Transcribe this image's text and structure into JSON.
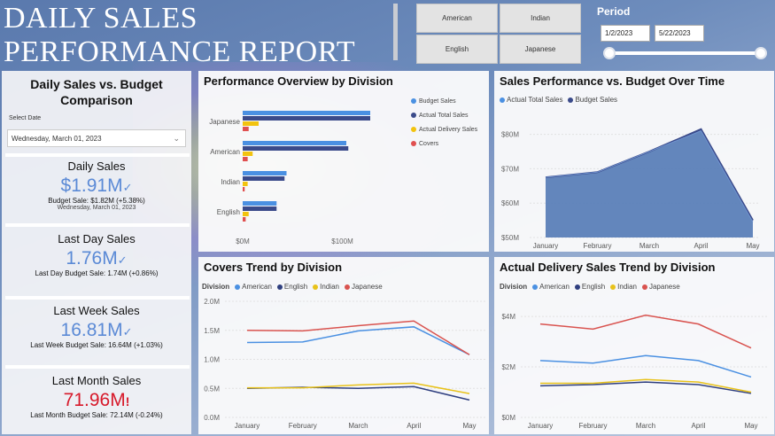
{
  "header": {
    "title_line1": "DAILY SALES",
    "title_line2": "PERFORMANCE REPORT",
    "division_buttons": [
      "American",
      "Indian",
      "English",
      "Japanese"
    ],
    "period_label": "Period",
    "start_date": "1/2/2023",
    "end_date": "5/22/2023"
  },
  "kpi": {
    "title": "Daily Sales vs. Budget Comparison",
    "select_label": "Select Date",
    "selected_date": "Wednesday, March 01, 2023",
    "daily": {
      "title": "Daily Sales",
      "value": "$1.91M",
      "sub": "Budget Sale: $1.82M (+5.38%)",
      "date": "Wednesday, March 01, 2023"
    },
    "last_day": {
      "title": "Last Day Sales",
      "value": "1.76M",
      "sub": "Last Day Budget Sale: 1.74M (+0.86%)"
    },
    "last_week": {
      "title": "Last Week Sales",
      "value": "16.81M",
      "sub": "Last Week Budget Sale: 16.64M (+1.03%)"
    },
    "last_month": {
      "title": "Last Month Sales",
      "value": "71.96M",
      "sub": "Last Month Budget Sale: 72.14M (-0.24%)"
    }
  },
  "colors": {
    "budget": "#4a90e2",
    "actual": "#3a4a8a",
    "delivery": "#f2c30f",
    "covers": "#e05050",
    "american": "#4a90e2",
    "english": "#2f3f7f",
    "indian": "#e8c21a",
    "japanese": "#d9534f",
    "area": "#5b7fb8"
  },
  "charts": {
    "overview": {
      "title": "Performance Overview by Division",
      "legend": [
        "Budget Sales",
        "Actual Total Sales",
        "Actual Delivery Sales",
        "Covers"
      ]
    },
    "budget_time": {
      "title": "Sales Performance vs. Budget Over Time",
      "legend": [
        "Actual Total Sales",
        "Budget Sales"
      ]
    },
    "covers": {
      "title": "Covers Trend by Division",
      "legend_label": "Division",
      "legend": [
        "American",
        "English",
        "Indian",
        "Japanese"
      ]
    },
    "delivery": {
      "title": "Actual Delivery Sales Trend by Division",
      "legend_label": "Division",
      "legend": [
        "American",
        "English",
        "Indian",
        "Japanese"
      ]
    }
  },
  "chart_data": [
    {
      "type": "bar",
      "title": "Performance Overview by Division",
      "orientation": "horizontal",
      "categories": [
        "Japanese",
        "American",
        "Indian",
        "English"
      ],
      "xticks": [
        "$0M",
        "$100M"
      ],
      "xlim": [
        0,
        160
      ],
      "series": [
        {
          "name": "Budget Sales",
          "values": [
            128,
            104,
            44,
            34
          ]
        },
        {
          "name": "Actual Total Sales",
          "values": [
            128,
            106,
            42,
            34
          ]
        },
        {
          "name": "Actual Delivery Sales",
          "values": [
            16,
            10,
            5,
            6
          ]
        },
        {
          "name": "Covers",
          "values": [
            6,
            5,
            2,
            3
          ]
        }
      ]
    },
    {
      "type": "area",
      "title": "Sales Performance vs. Budget Over Time",
      "x": [
        "January",
        "February",
        "March",
        "April",
        "May"
      ],
      "yticks": [
        "$50M",
        "$60M",
        "$70M",
        "$80M"
      ],
      "ylim": [
        50,
        83
      ],
      "series": [
        {
          "name": "Actual Total Sales",
          "values": [
            67.5,
            69,
            75,
            81,
            54.5
          ]
        },
        {
          "name": "Budget Sales",
          "values": [
            67.5,
            69,
            75,
            81.5,
            55
          ]
        }
      ]
    },
    {
      "type": "line",
      "title": "Covers Trend by Division",
      "x": [
        "January",
        "February",
        "March",
        "April",
        "May"
      ],
      "yticks": [
        "0.0M",
        "0.5M",
        "1.0M",
        "1.5M",
        "2.0M"
      ],
      "ylim": [
        0,
        2.0
      ],
      "series": [
        {
          "name": "American",
          "values": [
            1.29,
            1.3,
            1.49,
            1.56,
            1.08
          ]
        },
        {
          "name": "English",
          "values": [
            0.5,
            0.52,
            0.5,
            0.53,
            0.3
          ]
        },
        {
          "name": "Indian",
          "values": [
            0.51,
            0.51,
            0.56,
            0.59,
            0.41
          ]
        },
        {
          "name": "Japanese",
          "values": [
            1.5,
            1.49,
            1.58,
            1.66,
            1.08
          ]
        }
      ]
    },
    {
      "type": "line",
      "title": "Actual Delivery Sales Trend by Division",
      "x": [
        "January",
        "February",
        "March",
        "April",
        "May"
      ],
      "yticks": [
        "$0M",
        "$2M",
        "$4M"
      ],
      "ylim": [
        0,
        4.6
      ],
      "series": [
        {
          "name": "American",
          "values": [
            2.25,
            2.15,
            2.45,
            2.25,
            1.6
          ]
        },
        {
          "name": "English",
          "values": [
            1.25,
            1.3,
            1.4,
            1.3,
            0.95
          ]
        },
        {
          "name": "Indian",
          "values": [
            1.35,
            1.35,
            1.5,
            1.4,
            1.0
          ]
        },
        {
          "name": "Japanese",
          "values": [
            3.7,
            3.5,
            4.05,
            3.7,
            2.75
          ]
        }
      ]
    }
  ]
}
